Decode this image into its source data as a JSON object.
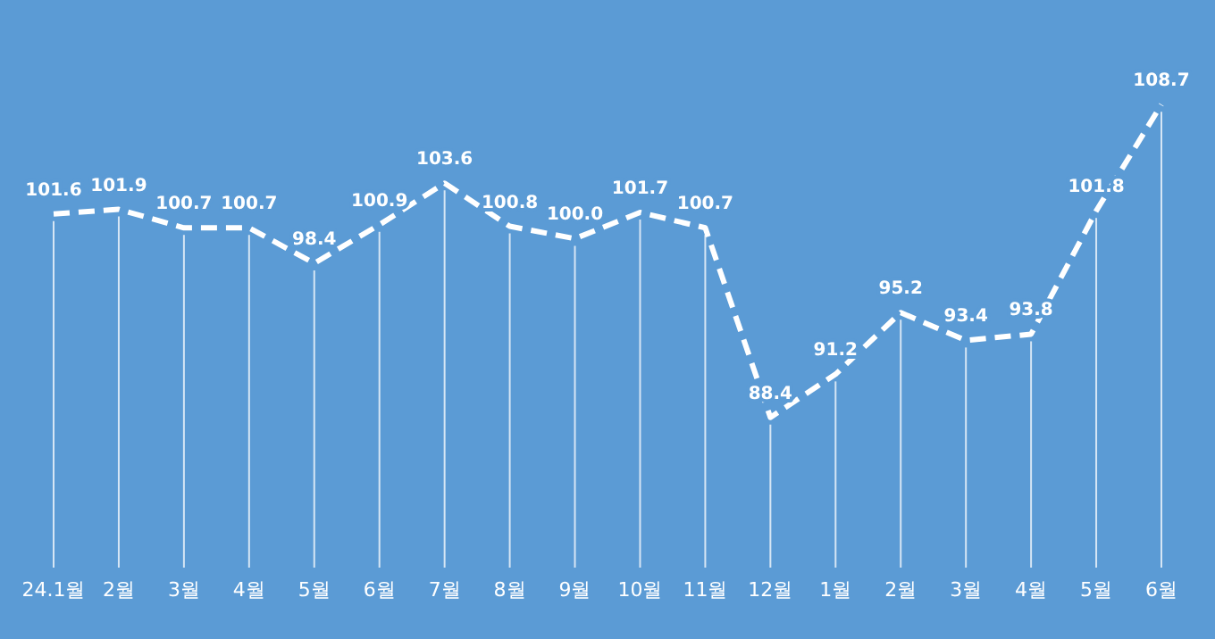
{
  "chart_data": {
    "type": "line",
    "categories": [
      "24.1월",
      "2월",
      "3월",
      "4월",
      "5월",
      "6월",
      "7월",
      "8월",
      "9월",
      "10월",
      "11월",
      "12월",
      "1월",
      "2월",
      "3월",
      "4월",
      "5월",
      "6월"
    ],
    "values": [
      101.6,
      101.9,
      100.7,
      100.7,
      98.4,
      100.9,
      103.6,
      100.8,
      100.0,
      101.7,
      100.7,
      88.4,
      91.2,
      95.2,
      93.4,
      93.8,
      101.8,
      108.7
    ],
    "value_labels": [
      "101.6",
      "101.9",
      "100.7",
      "100.7",
      "98.4",
      "100.9",
      "103.6",
      "100.8",
      "100.0",
      "101.7",
      "100.7",
      "88.4",
      "91.2",
      "95.2",
      "93.4",
      "93.8",
      "101.8",
      "108.7"
    ],
    "color": "#ffffff",
    "line_style": "dashed",
    "tick_labels": "x",
    "grid": "x"
  }
}
